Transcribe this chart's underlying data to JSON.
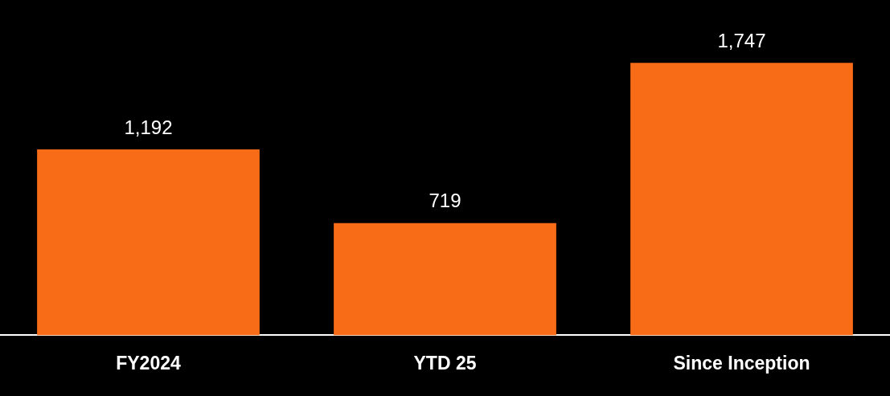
{
  "chart_data": {
    "type": "bar",
    "categories": [
      "FY2024",
      "YTD 25",
      "Since Inception"
    ],
    "values": [
      1192,
      719,
      1747
    ],
    "value_labels": [
      "1,192",
      "719",
      "1,747"
    ],
    "color": "#f86b17"
  }
}
